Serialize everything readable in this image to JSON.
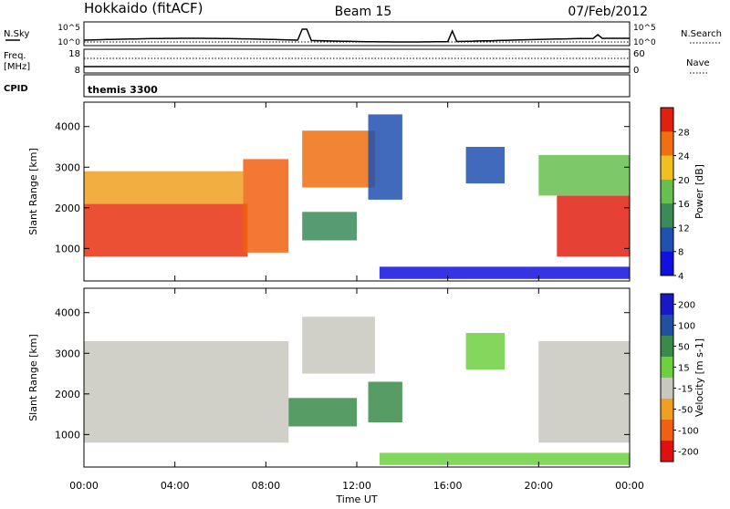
{
  "header": {
    "station": "Hokkaido (fitACF)",
    "beam": "Beam 15",
    "date": "07/Feb/2012"
  },
  "aux": {
    "nsky_label": "N.Sky",
    "nsky_ticks": [
      "10^5",
      "10^0"
    ],
    "nsearch_label": "N.Search",
    "nsearch_ticks": [
      "10^5",
      "10^0"
    ],
    "freq_label_1": "Freq.",
    "freq_label_2": "[MHz]",
    "freq_ticks": [
      "18",
      "8"
    ],
    "nave_label": "Nave",
    "nave_ticks": [
      "60",
      "0"
    ],
    "cpid_label": "CPID",
    "cpid_value": "themis 3300"
  },
  "chart_data": [
    {
      "type": "heatmap",
      "name": "power",
      "ylabel": "Slant Range [km]",
      "y_ticks": [
        1000,
        2000,
        3000,
        4000
      ],
      "ylim": [
        200,
        4600
      ],
      "colorbar_label": "Power [dB]",
      "colorbar_ticks": [
        4,
        8,
        12,
        16,
        20,
        24,
        28
      ],
      "colorbar_colors": [
        "#1010e0",
        "#2050b0",
        "#3a8a5a",
        "#66c050",
        "#f0c020",
        "#f07010",
        "#e02010"
      ],
      "echo_regions": [
        {
          "t0": 0.0,
          "t1": 7.2,
          "r0": 800,
          "r1": 2100,
          "color": "#e83010"
        },
        {
          "t0": 0.0,
          "t1": 7.0,
          "r0": 2100,
          "r1": 2900,
          "color": "#f0a020"
        },
        {
          "t0": 7.0,
          "t1": 9.0,
          "r0": 900,
          "r1": 3200,
          "color": "#f06010"
        },
        {
          "t0": 9.6,
          "t1": 12.8,
          "r0": 2500,
          "r1": 3900,
          "color": "#f07010"
        },
        {
          "t0": 9.6,
          "t1": 12.0,
          "r0": 1200,
          "r1": 1900,
          "color": "#3a8a5a"
        },
        {
          "t0": 12.5,
          "t1": 14.0,
          "r0": 2200,
          "r1": 4300,
          "color": "#2050b0"
        },
        {
          "t0": 16.8,
          "t1": 18.5,
          "r0": 2600,
          "r1": 3500,
          "color": "#2050b0"
        },
        {
          "t0": 20.8,
          "t1": 24.0,
          "r0": 800,
          "r1": 2300,
          "color": "#e02010"
        },
        {
          "t0": 20.0,
          "t1": 24.0,
          "r0": 2300,
          "r1": 3300,
          "color": "#66c050"
        },
        {
          "t0": 13.0,
          "t1": 24.0,
          "r0": 250,
          "r1": 550,
          "color": "#1010e0"
        }
      ]
    },
    {
      "type": "heatmap",
      "name": "velocity",
      "ylabel": "Slant Range [km]",
      "y_ticks": [
        1000,
        2000,
        3000,
        4000
      ],
      "ylim": [
        200,
        4600
      ],
      "colorbar_label": "Velocity [m s-1]",
      "colorbar_ticks": [
        200,
        100,
        50,
        15,
        -15,
        -50,
        -100,
        -200
      ],
      "colorbar_colors": [
        "#1818c8",
        "#2050a0",
        "#3a8a4a",
        "#6cd040",
        "#c8c8c0",
        "#f0a020",
        "#f06010",
        "#e01010"
      ],
      "echo_regions": [
        {
          "t0": 0.0,
          "t1": 9.0,
          "r0": 800,
          "r1": 3300,
          "color": "#c8c8c0"
        },
        {
          "t0": 9.0,
          "t1": 12.0,
          "r0": 1200,
          "r1": 1900,
          "color": "#3a8a4a"
        },
        {
          "t0": 9.6,
          "t1": 12.8,
          "r0": 2500,
          "r1": 3900,
          "color": "#c8c8c0"
        },
        {
          "t0": 12.5,
          "t1": 14.0,
          "r0": 1300,
          "r1": 2300,
          "color": "#3a8a4a"
        },
        {
          "t0": 16.8,
          "t1": 18.5,
          "r0": 2600,
          "r1": 3500,
          "color": "#6cd040"
        },
        {
          "t0": 20.0,
          "t1": 24.0,
          "r0": 800,
          "r1": 3300,
          "color": "#c8c8c0"
        },
        {
          "t0": 13.0,
          "t1": 24.0,
          "r0": 250,
          "r1": 550,
          "color": "#6cd040"
        }
      ]
    }
  ],
  "time_axis": {
    "xlabel": "Time UT",
    "ticks": [
      "00:00",
      "04:00",
      "08:00",
      "12:00",
      "16:00",
      "20:00",
      "00:00"
    ],
    "xlim": [
      0,
      24
    ]
  }
}
